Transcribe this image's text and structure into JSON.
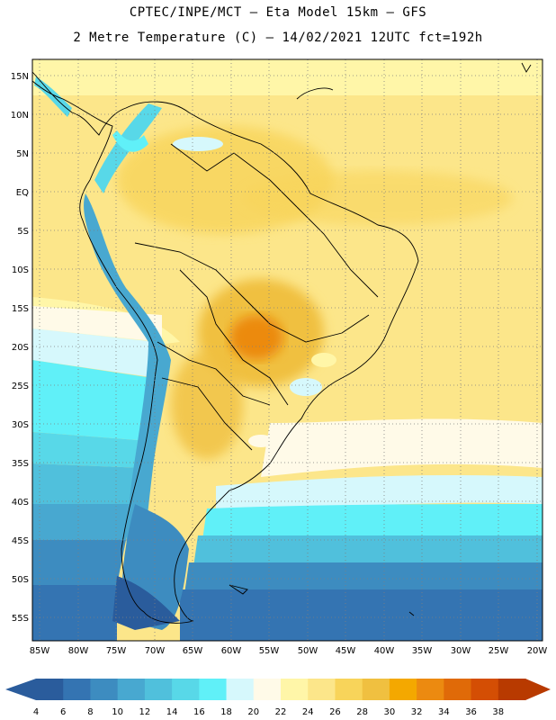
{
  "title_line1": "CPTEC/INPE/MCT –  Eta Model 15km – GFS",
  "title_line2": "2 Metre Temperature (C) – 14/02/2021 12UTC fct=192h",
  "lat_labels": [
    "15N",
    "10N",
    "5N",
    "EQ",
    "5S",
    "10S",
    "15S",
    "20S",
    "25S",
    "30S",
    "35S",
    "40S",
    "45S",
    "50S",
    "55S"
  ],
  "lon_labels": [
    "85W",
    "80W",
    "75W",
    "70W",
    "65W",
    "60W",
    "55W",
    "50W",
    "45W",
    "40W",
    "35W",
    "30W",
    "25W",
    "20W"
  ],
  "colorbar": {
    "labels": [
      "4",
      "6",
      "8",
      "10",
      "12",
      "14",
      "16",
      "18",
      "20",
      "22",
      "24",
      "26",
      "28",
      "30",
      "32",
      "34",
      "36",
      "38"
    ],
    "colors": [
      "#2a5c9c",
      "#3474b2",
      "#3d8cc0",
      "#48a8d0",
      "#50c0dc",
      "#58d8e8",
      "#60f0f8",
      "#d6f8fc",
      "#fffae8",
      "#fff6a8",
      "#fce68a",
      "#f8d45a",
      "#f0c040",
      "#f4a800",
      "#ec8a10",
      "#e06a08",
      "#d44e04",
      "#b83a00"
    ]
  }
}
